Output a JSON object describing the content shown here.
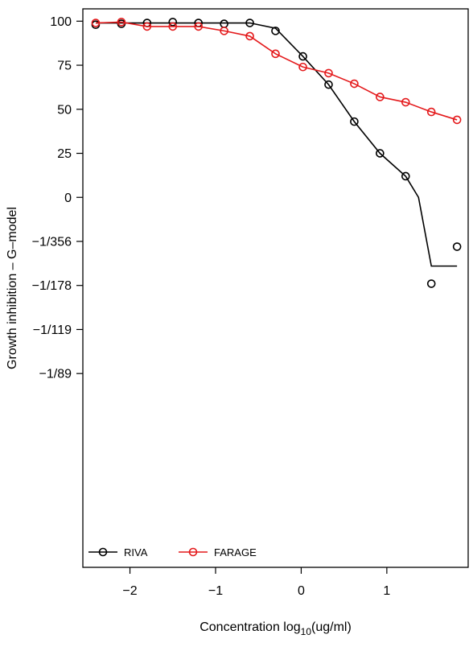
{
  "chart_data": {
    "type": "line",
    "title": "",
    "xlabel": "Concentration log10(ug/ml)",
    "xlabel_parts": {
      "base": "Concentration log",
      "sub": "10",
      "rest": "(ug/ml)"
    },
    "ylabel": "Growth inhibition – G–model",
    "xlim": [
      -2.55,
      1.95
    ],
    "ylim": [
      -210,
      107
    ],
    "x_ticks": [
      {
        "value": -2,
        "label": "−2"
      },
      {
        "value": -1,
        "label": "−1"
      },
      {
        "value": 0,
        "label": "0"
      },
      {
        "value": 1,
        "label": "1"
      }
    ],
    "y_ticks": [
      {
        "value": 100,
        "label": "100"
      },
      {
        "value": 75,
        "label": "75"
      },
      {
        "value": 50,
        "label": "50"
      },
      {
        "value": 25,
        "label": "25"
      },
      {
        "value": 0,
        "label": "0"
      },
      {
        "value": -25,
        "label": "−1/356"
      },
      {
        "value": -50,
        "label": "−1/178"
      },
      {
        "value": -75,
        "label": "−1/119"
      },
      {
        "value": -100,
        "label": "−1/89"
      }
    ],
    "legend": {
      "placement": "bottom-left",
      "entries": [
        {
          "name": "RIVA",
          "color": "#000000"
        },
        {
          "name": "FARAGE",
          "color": "#e41a1c"
        }
      ]
    },
    "series": [
      {
        "name": "RIVA",
        "color": "#000000",
        "points": [
          {
            "x": -2.4,
            "y": 98
          },
          {
            "x": -2.1,
            "y": 98.5
          },
          {
            "x": -1.8,
            "y": 99
          },
          {
            "x": -1.5,
            "y": 99.5
          },
          {
            "x": -1.2,
            "y": 99
          },
          {
            "x": -0.9,
            "y": 98.5
          },
          {
            "x": -0.6,
            "y": 99
          },
          {
            "x": -0.3,
            "y": 94.5
          },
          {
            "x": 0.02,
            "y": 80
          },
          {
            "x": 0.32,
            "y": 64
          },
          {
            "x": 0.62,
            "y": 43
          },
          {
            "x": 0.92,
            "y": 25
          },
          {
            "x": 1.22,
            "y": 12
          },
          {
            "x": 1.52,
            "y": -49
          },
          {
            "x": 1.82,
            "y": -28
          }
        ],
        "fit": [
          {
            "x": -2.4,
            "y": 99
          },
          {
            "x": -0.6,
            "y": 99
          },
          {
            "x": -0.3,
            "y": 96
          },
          {
            "x": 0.02,
            "y": 80
          },
          {
            "x": 0.32,
            "y": 64
          },
          {
            "x": 0.62,
            "y": 43
          },
          {
            "x": 0.92,
            "y": 25
          },
          {
            "x": 1.22,
            "y": 12
          },
          {
            "x": 1.37,
            "y": 0
          },
          {
            "x": 1.52,
            "y": -39
          },
          {
            "x": 1.82,
            "y": -39
          }
        ]
      },
      {
        "name": "FARAGE",
        "color": "#e41a1c",
        "points": [
          {
            "x": -2.4,
            "y": 99
          },
          {
            "x": -2.1,
            "y": 99.5
          },
          {
            "x": -1.8,
            "y": 97
          },
          {
            "x": -1.5,
            "y": 97
          },
          {
            "x": -1.2,
            "y": 97
          },
          {
            "x": -0.9,
            "y": 94.5
          },
          {
            "x": -0.6,
            "y": 91.5
          },
          {
            "x": -0.3,
            "y": 81.5
          },
          {
            "x": 0.02,
            "y": 74
          },
          {
            "x": 0.32,
            "y": 70.5
          },
          {
            "x": 0.62,
            "y": 64.5
          },
          {
            "x": 0.92,
            "y": 57
          },
          {
            "x": 1.22,
            "y": 54
          },
          {
            "x": 1.52,
            "y": 48.5
          },
          {
            "x": 1.82,
            "y": 44
          }
        ]
      }
    ]
  }
}
